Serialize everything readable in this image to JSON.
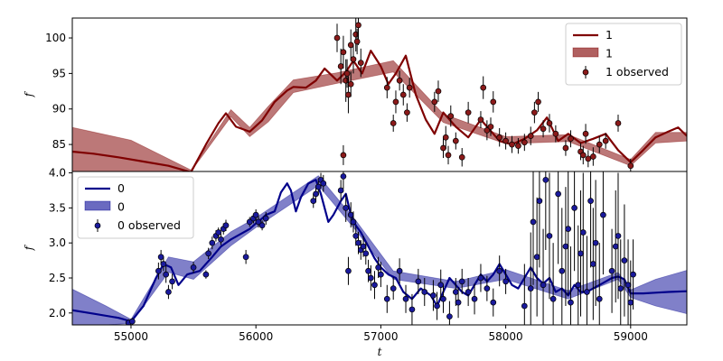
{
  "chart_data": [
    {
      "type": "line",
      "panel": "top",
      "xlabel": "",
      "ylabel": "f",
      "xlim": [
        54530,
        59450
      ],
      "ylim": [
        81.2,
        102.8
      ],
      "yticks": [
        "85",
        "90",
        "95",
        "100"
      ],
      "ytick_values": [
        85,
        90,
        95,
        100
      ],
      "xticks_shown": false,
      "colors": {
        "line": "#7f0000",
        "band": "#b06060",
        "points": "#8b1a1a"
      },
      "legend": {
        "placement": "top-right",
        "entries": [
          "1",
          "1",
          "1 observed"
        ]
      },
      "model_line": {
        "x": [
          54530,
          54700,
          54900,
          55100,
          55300,
          55480,
          55600,
          55700,
          55760,
          55840,
          55950,
          56050,
          56150,
          56250,
          56300,
          56400,
          56480,
          56550,
          56650,
          56720,
          56780,
          56850,
          56920,
          57000,
          57060,
          57120,
          57200,
          57280,
          57360,
          57430,
          57500,
          57600,
          57700,
          57800,
          57850,
          57950,
          58050,
          58150,
          58250,
          58330,
          58420,
          58500,
          58600,
          58700,
          58800,
          58900,
          59000,
          59100,
          59200,
          59300,
          59380,
          59450
        ],
        "y": [
          84.0,
          83.7,
          83.2,
          82.6,
          82.0,
          81.1,
          85.0,
          88.0,
          89.4,
          87.5,
          86.8,
          88.4,
          91.0,
          92.6,
          93.1,
          93.0,
          94.0,
          95.7,
          94.0,
          95.2,
          96.8,
          95.0,
          98.2,
          96.0,
          93.5,
          95.0,
          97.5,
          92.0,
          88.5,
          86.5,
          89.5,
          87.5,
          86.0,
          88.5,
          87.5,
          85.5,
          85.0,
          85.8,
          87.0,
          88.8,
          85.5,
          86.5,
          85.2,
          85.8,
          86.5,
          84.2,
          82.5,
          84.2,
          86.0,
          86.8,
          87.4,
          86.2
        ]
      },
      "uncertainty_band": {
        "x": [
          54530,
          55000,
          55480,
          55800,
          55950,
          56100,
          56300,
          56650,
          57100,
          57500,
          58000,
          58500,
          59000,
          59200,
          59450
        ],
        "upper": [
          87.4,
          85.6,
          81.4,
          89.9,
          87.4,
          90.4,
          94.1,
          95.1,
          96.8,
          89.3,
          86.1,
          86.4,
          82.9,
          86.7,
          86.7
        ],
        "lower": [
          81.2,
          81.2,
          81.2,
          88.9,
          86.1,
          88.2,
          92.3,
          93.6,
          95.2,
          88.1,
          85.1,
          85.4,
          82.0,
          85.2,
          85.5
        ]
      },
      "observed": {
        "x": [
          56650,
          56680,
          56700,
          56720,
          56740,
          56760,
          56780,
          56800,
          56820,
          56840,
          56700,
          56760,
          56730,
          56810,
          57050,
          57100,
          57120,
          57150,
          57180,
          57210,
          57230,
          57430,
          57460,
          57500,
          57520,
          57540,
          57560,
          57600,
          57650,
          57700,
          57800,
          57820,
          57850,
          57880,
          57900,
          57950,
          58000,
          58050,
          58100,
          58150,
          58200,
          58230,
          58260,
          58300,
          58350,
          58400,
          58480,
          58520,
          58600,
          58620,
          58640,
          58660,
          58700,
          58750,
          58800,
          58900,
          59000
        ],
        "y": [
          100.0,
          96.0,
          98.0,
          94.0,
          92.0,
          99.0,
          97.0,
          100.5,
          101.8,
          96.5,
          83.5,
          93.5,
          95.0,
          99.5,
          93.0,
          88.0,
          91.0,
          94.0,
          92.0,
          89.5,
          93.0,
          91.0,
          92.5,
          84.5,
          86.0,
          83.5,
          89.0,
          85.5,
          83.2,
          89.5,
          88.5,
          93.0,
          87.0,
          87.5,
          91.0,
          86.0,
          85.5,
          85.0,
          84.8,
          85.3,
          86.2,
          89.5,
          91.0,
          87.2,
          88.0,
          86.5,
          84.5,
          85.8,
          84.0,
          83.5,
          86.5,
          83.0,
          83.3,
          85.0,
          85.5,
          88.0,
          82.0
        ],
        "err": [
          2.0,
          2.5,
          2.3,
          3.0,
          2.6,
          2.2,
          2.0,
          2.4,
          2.8,
          2.0,
          1.4,
          1.8,
          2.0,
          1.8,
          1.5,
          1.2,
          1.6,
          1.4,
          1.5,
          1.3,
          1.4,
          1.4,
          1.5,
          1.4,
          1.6,
          1.3,
          1.5,
          1.2,
          1.3,
          1.5,
          1.2,
          1.6,
          1.4,
          1.3,
          1.5,
          1.3,
          1.2,
          1.2,
          1.1,
          1.2,
          1.3,
          1.5,
          1.4,
          1.2,
          1.3,
          1.2,
          1.1,
          1.2,
          1.2,
          1.3,
          1.4,
          1.2,
          1.3,
          1.2,
          1.1,
          1.2,
          1.0
        ]
      }
    },
    {
      "type": "line",
      "panel": "bottom",
      "xlabel": "t",
      "ylabel": "f",
      "xlim": [
        54530,
        59450
      ],
      "ylim": [
        1.83,
        4.02
      ],
      "yticks": [
        "2.0",
        "2.5",
        "3.0",
        "3.5",
        "4.0"
      ],
      "ytick_values": [
        2.0,
        2.5,
        3.0,
        3.5,
        4.0
      ],
      "xticks": [
        "55000",
        "56000",
        "57000",
        "58000",
        "59000"
      ],
      "xtick_values": [
        55000,
        56000,
        57000,
        58000,
        59000
      ],
      "colors": {
        "line": "#00008b",
        "band": "#6a6ac0",
        "points": "#1a1a9c"
      },
      "legend": {
        "placement": "top-left",
        "entries": [
          "0",
          "0",
          "0 observed"
        ]
      },
      "model_line": {
        "x": [
          54530,
          54700,
          54900,
          55000,
          55100,
          55200,
          55260,
          55320,
          55380,
          55450,
          55550,
          55650,
          55720,
          55800,
          55850,
          55950,
          56000,
          56050,
          56080,
          56150,
          56200,
          56250,
          56280,
          56320,
          56360,
          56420,
          56480,
          56520,
          56580,
          56620,
          56680,
          56720,
          56760,
          56800,
          56840,
          56900,
          56950,
          57000,
          57060,
          57120,
          57180,
          57250,
          57320,
          57400,
          57450,
          57500,
          57550,
          57600,
          57650,
          57700,
          57750,
          57800,
          57850,
          57900,
          57950,
          58000,
          58050,
          58100,
          58150,
          58200,
          58250,
          58300,
          58350,
          58400,
          58450,
          58500,
          58550,
          58600,
          58650,
          58700,
          58750,
          58800,
          58850,
          58900,
          58950,
          59000,
          59100,
          59200,
          59300,
          59450
        ],
        "y": [
          2.04,
          1.99,
          1.93,
          1.88,
          2.1,
          2.5,
          2.7,
          2.65,
          2.4,
          2.55,
          2.6,
          2.8,
          2.95,
          3.05,
          3.1,
          3.2,
          3.28,
          3.35,
          3.4,
          3.45,
          3.72,
          3.85,
          3.75,
          3.45,
          3.65,
          3.85,
          3.9,
          3.7,
          3.3,
          3.4,
          3.6,
          3.7,
          3.4,
          3.25,
          3.15,
          2.95,
          2.78,
          2.65,
          2.55,
          2.5,
          2.3,
          2.2,
          2.35,
          2.25,
          2.1,
          2.3,
          2.5,
          2.4,
          2.3,
          2.25,
          2.4,
          2.55,
          2.45,
          2.55,
          2.7,
          2.55,
          2.4,
          2.35,
          2.5,
          2.65,
          2.5,
          2.42,
          2.5,
          2.3,
          2.35,
          2.25,
          2.4,
          2.3,
          2.3,
          2.35,
          2.4,
          2.45,
          2.5,
          2.52,
          2.48,
          2.28,
          2.28,
          2.29,
          2.3,
          2.31
        ]
      },
      "uncertainty_band": {
        "x": [
          54530,
          54800,
          55000,
          55300,
          55500,
          55800,
          56000,
          56500,
          56800,
          57100,
          57600,
          58000,
          58500,
          58900,
          59000,
          59200,
          59450
        ],
        "upper": [
          2.34,
          2.1,
          1.91,
          2.8,
          2.73,
          3.16,
          3.36,
          3.96,
          3.32,
          2.6,
          2.45,
          2.62,
          2.32,
          2.58,
          2.33,
          2.48,
          2.61
        ],
        "lower": [
          1.83,
          1.83,
          1.85,
          2.58,
          2.48,
          2.96,
          3.22,
          3.82,
          3.18,
          2.48,
          2.35,
          2.48,
          2.2,
          2.48,
          2.22,
          2.1,
          1.99
        ]
      },
      "observed": {
        "x": [
          54980,
          55010,
          55220,
          55240,
          55260,
          55280,
          55300,
          55330,
          55500,
          55600,
          55620,
          55650,
          55680,
          55700,
          55720,
          55740,
          55760,
          55950,
          55980,
          56000,
          56020,
          56050,
          56080,
          55920,
          56480,
          56500,
          56520,
          56540,
          56460,
          56680,
          56700,
          56720,
          56740,
          56760,
          56780,
          56800,
          56820,
          56840,
          56860,
          56880,
          56900,
          56920,
          56950,
          56980,
          57000,
          57050,
          57100,
          57150,
          57200,
          57250,
          57300,
          57350,
          57420,
          57450,
          57480,
          57500,
          57550,
          57600,
          57620,
          57650,
          57700,
          57750,
          57800,
          57850,
          57900,
          57950,
          58000,
          58150,
          58200,
          58220,
          58250,
          58270,
          58300,
          58320,
          58350,
          58380,
          58420,
          58450,
          58480,
          58500,
          58520,
          58550,
          58580,
          58600,
          58620,
          58650,
          58680,
          58700,
          58720,
          58750,
          58780,
          58850,
          58880,
          58900,
          58920,
          58950,
          58980,
          59000,
          59020
        ],
        "y": [
          1.86,
          1.88,
          2.6,
          2.8,
          2.7,
          2.55,
          2.3,
          2.45,
          2.65,
          2.55,
          2.85,
          3.0,
          3.1,
          3.15,
          3.05,
          3.2,
          3.25,
          3.3,
          3.35,
          3.4,
          3.3,
          3.25,
          3.35,
          2.8,
          3.7,
          3.8,
          3.9,
          3.85,
          3.6,
          3.75,
          3.95,
          3.5,
          2.6,
          3.4,
          3.3,
          3.1,
          3.0,
          2.9,
          2.95,
          2.85,
          2.6,
          2.5,
          2.4,
          2.65,
          2.55,
          2.2,
          2.35,
          2.6,
          2.2,
          2.05,
          2.45,
          2.3,
          2.25,
          2.1,
          2.4,
          2.2,
          1.95,
          2.3,
          2.15,
          2.45,
          2.3,
          2.2,
          2.5,
          2.35,
          2.15,
          2.6,
          2.45,
          2.1,
          2.35,
          3.3,
          2.8,
          3.6,
          2.4,
          3.9,
          3.1,
          2.2,
          3.7,
          2.6,
          2.95,
          3.2,
          2.15,
          3.5,
          2.4,
          2.85,
          3.15,
          2.3,
          3.6,
          2.7,
          3.0,
          2.2,
          3.4,
          2.6,
          2.95,
          3.1,
          2.35,
          2.75,
          2.4,
          2.15,
          2.55
        ],
        "err": [
          0.05,
          0.05,
          0.12,
          0.1,
          0.1,
          0.12,
          0.1,
          0.11,
          0.08,
          0.06,
          0.08,
          0.09,
          0.08,
          0.07,
          0.08,
          0.08,
          0.08,
          0.07,
          0.07,
          0.08,
          0.08,
          0.07,
          0.09,
          0.1,
          0.12,
          0.12,
          0.1,
          0.12,
          0.1,
          0.15,
          0.18,
          0.2,
          0.2,
          0.18,
          0.15,
          0.14,
          0.16,
          0.14,
          0.15,
          0.16,
          0.16,
          0.18,
          0.2,
          0.15,
          0.18,
          0.2,
          0.16,
          0.18,
          0.2,
          0.22,
          0.18,
          0.2,
          0.22,
          0.2,
          0.22,
          0.2,
          0.22,
          0.2,
          0.22,
          0.18,
          0.2,
          0.22,
          0.2,
          0.18,
          0.2,
          0.22,
          0.18,
          0.6,
          0.8,
          0.9,
          0.85,
          0.95,
          0.8,
          1.0,
          0.9,
          0.8,
          1.0,
          0.9,
          0.85,
          0.95,
          0.8,
          0.9,
          0.85,
          0.9,
          0.85,
          0.8,
          0.95,
          0.8,
          0.9,
          0.8,
          0.85,
          0.6,
          0.8,
          0.9,
          0.7,
          0.8,
          0.65,
          0.6,
          0.5
        ]
      }
    }
  ]
}
